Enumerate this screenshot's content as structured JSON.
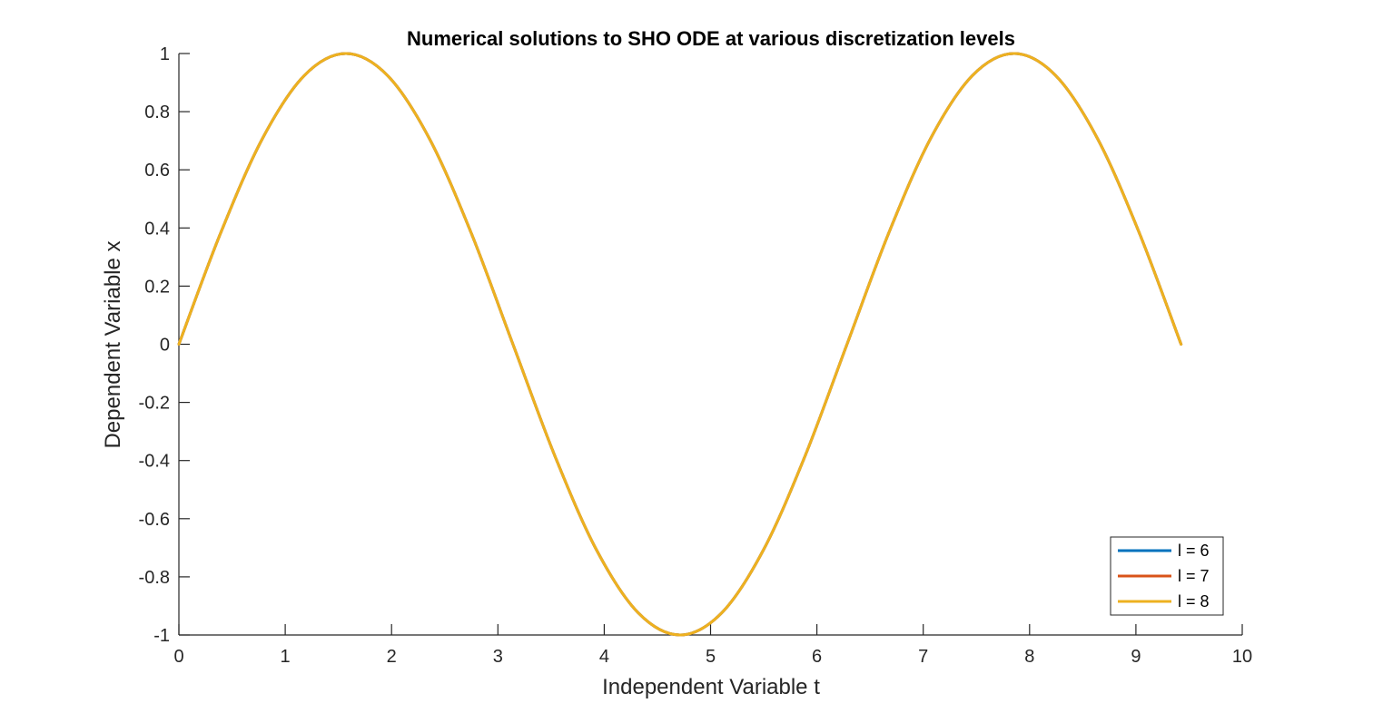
{
  "chart_data": {
    "type": "line",
    "title": "Numerical solutions to SHO ODE at various discretization levels",
    "xlabel": "Independent Variable t",
    "ylabel": "Dependent Variable x",
    "xlim": [
      0,
      10
    ],
    "ylim": [
      -1,
      1
    ],
    "xticks": [
      "0",
      "1",
      "2",
      "3",
      "4",
      "5",
      "6",
      "7",
      "8",
      "9",
      "10"
    ],
    "yticks": [
      "1",
      "0.8",
      "0.6",
      "0.4",
      "0.2",
      "0",
      "-0.2",
      "-0.4",
      "-0.6",
      "-0.8",
      "-1"
    ],
    "grid": false,
    "legend_location": "bottom-right",
    "x": [
      0,
      0.3927,
      0.7854,
      1.1781,
      1.5708,
      1.9635,
      2.3562,
      2.7489,
      3.1416,
      3.5343,
      3.927,
      4.3197,
      4.7124,
      5.1051,
      5.4978,
      5.8905,
      6.2832,
      6.6759,
      7.0686,
      7.4613,
      7.854,
      8.2467,
      8.6394,
      9.0321,
      9.4248
    ],
    "series": [
      {
        "name": "l = 6",
        "color": "#0072BD",
        "values": [
          0,
          0.3827,
          0.7071,
          0.9239,
          1.0,
          0.9239,
          0.7071,
          0.3827,
          0,
          -0.3827,
          -0.7071,
          -0.9239,
          -1.0,
          -0.9239,
          -0.7071,
          -0.3827,
          0,
          0.3827,
          0.7071,
          0.9239,
          1.0,
          0.9239,
          0.7071,
          0.3827,
          0
        ]
      },
      {
        "name": "l = 7",
        "color": "#D95319",
        "values": [
          0,
          0.3827,
          0.7071,
          0.9239,
          1.0,
          0.9239,
          0.7071,
          0.3827,
          0,
          -0.3827,
          -0.7071,
          -0.9239,
          -1.0,
          -0.9239,
          -0.7071,
          -0.3827,
          0,
          0.3827,
          0.7071,
          0.9239,
          1.0,
          0.9239,
          0.7071,
          0.3827,
          0
        ]
      },
      {
        "name": "l = 8",
        "color": "#EDB120",
        "values": [
          0,
          0.3827,
          0.7071,
          0.9239,
          1.0,
          0.9239,
          0.7071,
          0.3827,
          0,
          -0.3827,
          -0.7071,
          -0.9239,
          -1.0,
          -0.9239,
          -0.7071,
          -0.3827,
          0,
          0.3827,
          0.7071,
          0.9239,
          1.0,
          0.9239,
          0.7071,
          0.3827,
          0
        ]
      }
    ]
  }
}
